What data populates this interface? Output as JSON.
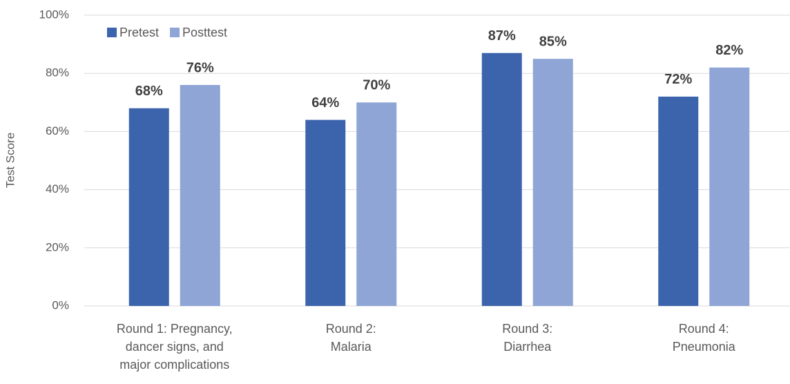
{
  "chart_data": {
    "type": "bar",
    "y_axis_label": "Test Score",
    "categories": [
      "Round 1: Pregnancy,\ndancer signs, and\nmajor complications",
      "Round 2:\nMalaria",
      "Round 3:\nDiarrhea",
      "Round 4:\nPneumonia"
    ],
    "series": [
      {
        "name": "Pretest",
        "color": "#3c64ad",
        "values": [
          68,
          64,
          87,
          72
        ],
        "value_labels": [
          "68%",
          "64%",
          "87%",
          "72%"
        ]
      },
      {
        "name": "Posttest",
        "color": "#8fa5d6",
        "values": [
          76,
          70,
          85,
          82
        ],
        "value_labels": [
          "76%",
          "70%",
          "85%",
          "82%"
        ]
      }
    ],
    "ylim": [
      0,
      100
    ],
    "yticks": [
      {
        "value": 0,
        "label": "0%"
      },
      {
        "value": 20,
        "label": "20%"
      },
      {
        "value": 40,
        "label": "40%"
      },
      {
        "value": 60,
        "label": "60%"
      },
      {
        "value": 80,
        "label": "80%"
      },
      {
        "value": 100,
        "label": "100%"
      }
    ],
    "grid": true,
    "legend": "top-left"
  }
}
